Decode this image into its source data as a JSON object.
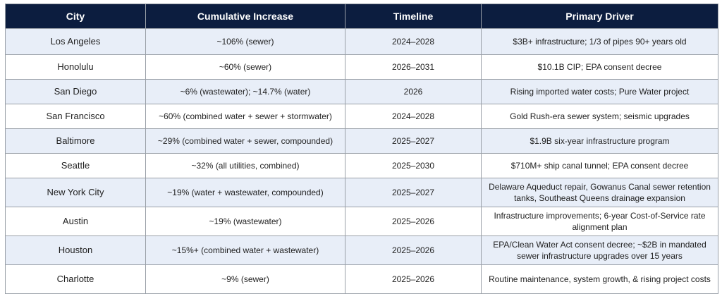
{
  "table": {
    "headers": [
      "City",
      "Cumulative Increase",
      "Timeline",
      "Primary Driver"
    ],
    "rows": [
      {
        "city": "Los Angeles",
        "increase": "~106% (sewer)",
        "timeline": "2024–2028",
        "driver": "$3B+ infrastructure; 1/3 of pipes 90+ years old"
      },
      {
        "city": "Honolulu",
        "increase": "~60% (sewer)",
        "timeline": "2026–2031",
        "driver": "$10.1B CIP; EPA consent decree"
      },
      {
        "city": "San Diego",
        "increase": "~6% (wastewater); ~14.7% (water)",
        "timeline": "2026",
        "driver": "Rising imported water costs; Pure Water project"
      },
      {
        "city": "San Francisco",
        "increase": "~60% (combined water + sewer + stormwater)",
        "timeline": "2024–2028",
        "driver": "Gold Rush-era sewer system; seismic upgrades"
      },
      {
        "city": "Baltimore",
        "increase": "~29% (combined water + sewer, compounded)",
        "timeline": "2025–2027",
        "driver": "$1.9B six-year infrastructure program"
      },
      {
        "city": "Seattle",
        "increase": "~32% (all utilities, combined)",
        "timeline": "2025–2030",
        "driver": "$710M+ ship canal tunnel; EPA consent decree"
      },
      {
        "city": "New York City",
        "increase": "~19% (water + wastewater, compounded)",
        "timeline": "2025–2027",
        "driver": "Delaware Aqueduct repair, Gowanus Canal sewer retention tanks, Southeast Queens drainage expansion"
      },
      {
        "city": "Austin",
        "increase": "~19% (wastewater)",
        "timeline": "2025–2026",
        "driver": "Infrastructure improvements; 6-year Cost-of-Service rate alignment plan"
      },
      {
        "city": "Houston",
        "increase": "~15%+ (combined water + wastewater)",
        "timeline": "2025–2026",
        "driver": "EPA/Clean Water Act consent decree; ~$2B in mandated sewer infrastructure upgrades over 15 years"
      },
      {
        "city": "Charlotte",
        "increase": "~9% (sewer)",
        "timeline": "2025–2026",
        "driver": "Routine maintenance, system growth, & rising project costs"
      }
    ]
  }
}
